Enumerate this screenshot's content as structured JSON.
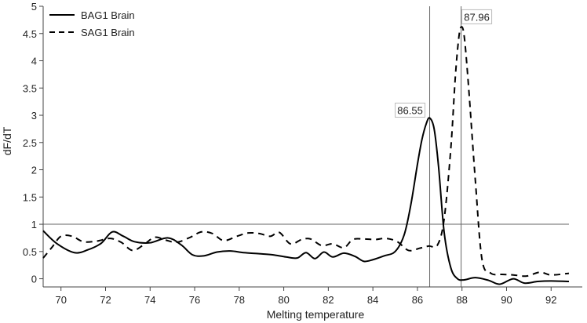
{
  "chart_data": {
    "type": "line",
    "title": "",
    "xlabel": "Melting temperature",
    "ylabel": "dF/dT",
    "xlim": [
      69.2,
      93.4
    ],
    "ylim": [
      -0.15,
      5
    ],
    "xticks": [
      70,
      72,
      74,
      76,
      78,
      80,
      82,
      84,
      86,
      88,
      90,
      92
    ],
    "yticks": [
      0,
      0.5,
      1,
      1.5,
      2,
      2.5,
      3,
      3.5,
      4,
      4.5,
      5
    ],
    "ytick_labels": [
      "0",
      "0.5",
      "1",
      "1.5",
      "2",
      "2.5",
      "3",
      "3.5",
      "4",
      "4.5",
      "5"
    ],
    "threshold": 1,
    "legend_position": "top-left",
    "series": [
      {
        "name": "BAG1 Brain",
        "style": "solid",
        "color": "#000000",
        "x": [
          69.2,
          69.8,
          70.6,
          71.2,
          71.8,
          72.3,
          72.8,
          73.3,
          74.0,
          74.8,
          75.4,
          75.9,
          76.4,
          77.0,
          77.6,
          78.2,
          78.9,
          79.5,
          80.1,
          80.6,
          81.0,
          81.4,
          81.8,
          82.2,
          82.7,
          83.2,
          83.6,
          84.0,
          84.5,
          85.0,
          85.4,
          85.7,
          86.0,
          86.2,
          86.4,
          86.55,
          86.75,
          86.95,
          87.2,
          87.5,
          87.8,
          88.1,
          88.6,
          89.2,
          89.7,
          90.3,
          90.8,
          91.4,
          92.0,
          92.8
        ],
        "y": [
          0.88,
          0.65,
          0.48,
          0.53,
          0.65,
          0.86,
          0.78,
          0.68,
          0.66,
          0.75,
          0.62,
          0.44,
          0.42,
          0.49,
          0.51,
          0.48,
          0.46,
          0.44,
          0.4,
          0.38,
          0.48,
          0.37,
          0.49,
          0.4,
          0.47,
          0.41,
          0.32,
          0.35,
          0.42,
          0.5,
          0.8,
          1.35,
          2.1,
          2.55,
          2.85,
          2.95,
          2.75,
          2.05,
          0.85,
          0.2,
          0.0,
          -0.02,
          0.02,
          -0.03,
          -0.1,
          0.0,
          -0.08,
          -0.05,
          -0.04,
          -0.05
        ]
      },
      {
        "name": "SAG1 Brain",
        "style": "dashed",
        "color": "#000000",
        "x": [
          69.2,
          69.6,
          70.0,
          70.5,
          71.0,
          71.6,
          72.2,
          72.7,
          73.2,
          73.7,
          74.2,
          74.7,
          75.2,
          75.8,
          76.3,
          76.8,
          77.3,
          77.9,
          78.4,
          78.9,
          79.4,
          79.8,
          80.3,
          80.8,
          81.2,
          81.7,
          82.2,
          82.7,
          83.1,
          83.6,
          84.1,
          84.6,
          85.1,
          85.6,
          86.1,
          86.5,
          86.9,
          87.2,
          87.5,
          87.7,
          87.85,
          87.96,
          88.1,
          88.3,
          88.6,
          88.9,
          89.3,
          89.8,
          90.3,
          90.9,
          91.5,
          92.0,
          92.8
        ],
        "y": [
          0.38,
          0.58,
          0.78,
          0.78,
          0.68,
          0.69,
          0.74,
          0.67,
          0.52,
          0.62,
          0.76,
          0.71,
          0.67,
          0.76,
          0.86,
          0.83,
          0.7,
          0.78,
          0.84,
          0.83,
          0.78,
          0.85,
          0.64,
          0.72,
          0.73,
          0.61,
          0.64,
          0.57,
          0.72,
          0.73,
          0.72,
          0.74,
          0.68,
          0.52,
          0.56,
          0.6,
          0.62,
          1.1,
          2.4,
          3.7,
          4.4,
          4.62,
          4.45,
          3.5,
          1.8,
          0.35,
          0.1,
          0.08,
          0.07,
          0.05,
          0.12,
          0.07,
          0.1
        ]
      }
    ],
    "annotations": [
      {
        "label": "86.55",
        "x": 86.55,
        "y": 2.95
      },
      {
        "label": "87.96",
        "x": 87.96,
        "y": 4.62
      }
    ]
  }
}
